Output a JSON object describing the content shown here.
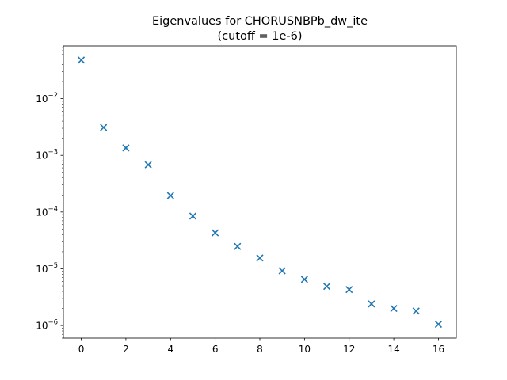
{
  "chart_data": {
    "type": "scatter",
    "title_line1": "Eigenvalues for CHORUSNBPb_dw_ite",
    "title_line2": "(cutoff = 1e-6)",
    "xlabel": "",
    "ylabel": "",
    "y_scale": "log",
    "xlim": [
      -0.8,
      16.8
    ],
    "ylim": [
      6e-07,
      0.085
    ],
    "x_ticks": [
      0,
      2,
      4,
      6,
      8,
      10,
      12,
      14,
      16
    ],
    "y_ticks": [
      {
        "exp": -6,
        "base": "10",
        "power": "−6"
      },
      {
        "exp": -5,
        "base": "10",
        "power": "−5"
      },
      {
        "exp": -4,
        "base": "10",
        "power": "−4"
      },
      {
        "exp": -3,
        "base": "10",
        "power": "−3"
      },
      {
        "exp": -2,
        "base": "10",
        "power": "−2"
      }
    ],
    "marker": "x",
    "color": "#1f77b4",
    "grid": false,
    "x": [
      0,
      1,
      2,
      3,
      4,
      5,
      6,
      7,
      8,
      9,
      10,
      11,
      12,
      13,
      14,
      15,
      16
    ],
    "y": [
      0.048,
      0.0031,
      0.00135,
      0.00068,
      0.000195,
      8.5e-05,
      4.3e-05,
      2.48e-05,
      1.55e-05,
      9.2e-06,
      6.5e-06,
      4.9e-06,
      4.3e-06,
      2.4e-06,
      2e-06,
      1.8e-06,
      1.05e-06
    ]
  }
}
